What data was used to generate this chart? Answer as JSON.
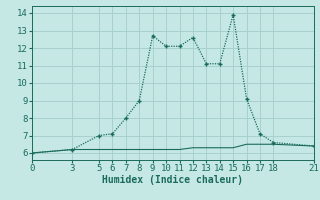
{
  "xlabel": "Humidex (Indice chaleur)",
  "background_color": "#c5e8e5",
  "grid_color": "#a8d0cc",
  "line_color": "#1a6b5a",
  "curve_x": [
    0,
    3,
    5,
    6,
    7,
    8,
    9,
    10,
    11,
    12,
    13,
    14,
    15,
    16,
    17,
    18,
    21
  ],
  "curve_y": [
    6.0,
    6.2,
    7.0,
    7.1,
    8.0,
    9.0,
    12.7,
    12.1,
    12.1,
    12.6,
    11.1,
    11.1,
    13.9,
    9.1,
    7.1,
    6.6,
    6.4
  ],
  "flat_x": [
    0,
    3,
    5,
    6,
    7,
    8,
    9,
    10,
    11,
    12,
    13,
    14,
    15,
    16,
    17,
    18,
    21
  ],
  "flat_y": [
    6.0,
    6.2,
    6.2,
    6.2,
    6.2,
    6.2,
    6.2,
    6.2,
    6.2,
    6.3,
    6.3,
    6.3,
    6.3,
    6.5,
    6.5,
    6.5,
    6.4
  ],
  "xlim": [
    0,
    21
  ],
  "ylim": [
    5.6,
    14.4
  ],
  "xticks": [
    0,
    3,
    5,
    6,
    7,
    8,
    9,
    10,
    11,
    12,
    13,
    14,
    15,
    16,
    17,
    18,
    21
  ],
  "yticks": [
    6,
    7,
    8,
    9,
    10,
    11,
    12,
    13,
    14
  ],
  "xlabel_fontsize": 7,
  "tick_fontsize": 6.5
}
